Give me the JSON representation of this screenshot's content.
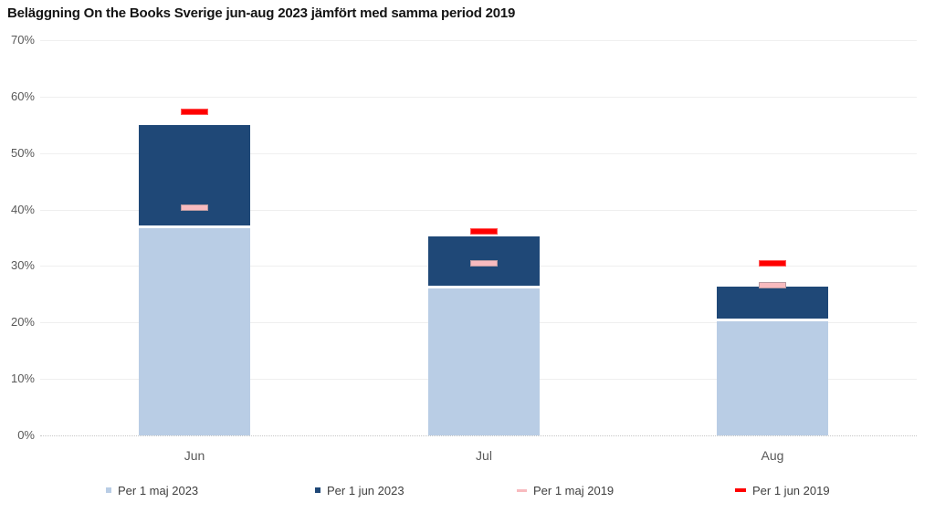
{
  "chart_data": {
    "type": "bar",
    "subtype": "stacked-bars-with-dash-markers",
    "title": "Beläggning On the Books Sverige jun-aug 2023 jämfört med samma period 2019",
    "categories": [
      "Jun",
      "Jul",
      "Aug"
    ],
    "series": [
      {
        "name": "Per 1 maj 2023",
        "render": "bar",
        "color": "#B9CDE5",
        "values": [
          36.7,
          26.0,
          20.2
        ]
      },
      {
        "name": "Per 1 jun 2023",
        "render": "bar",
        "color": "#1F4877",
        "values": [
          55.0,
          35.2,
          26.4
        ],
        "stacking_note": "values are cumulative bar tops; dark segment drawn from the 'Per 1 maj 2023' value up to this value"
      },
      {
        "name": "Per 1 maj 2019",
        "render": "dash-marker",
        "color": "#F8BBBF",
        "values": [
          40.3,
          30.5,
          26.6
        ]
      },
      {
        "name": "Per 1 jun 2019",
        "render": "dash-marker",
        "color": "#FF0000",
        "values": [
          57.3,
          36.2,
          30.4
        ]
      }
    ],
    "ylim": [
      0,
      70
    ],
    "ytick_step": 10,
    "ytick_suffix": "%",
    "ytick_labels": [
      "0%",
      "10%",
      "20%",
      "30%",
      "40%",
      "50%",
      "60%",
      "70%"
    ],
    "grid": true,
    "legend_position": "bottom"
  }
}
